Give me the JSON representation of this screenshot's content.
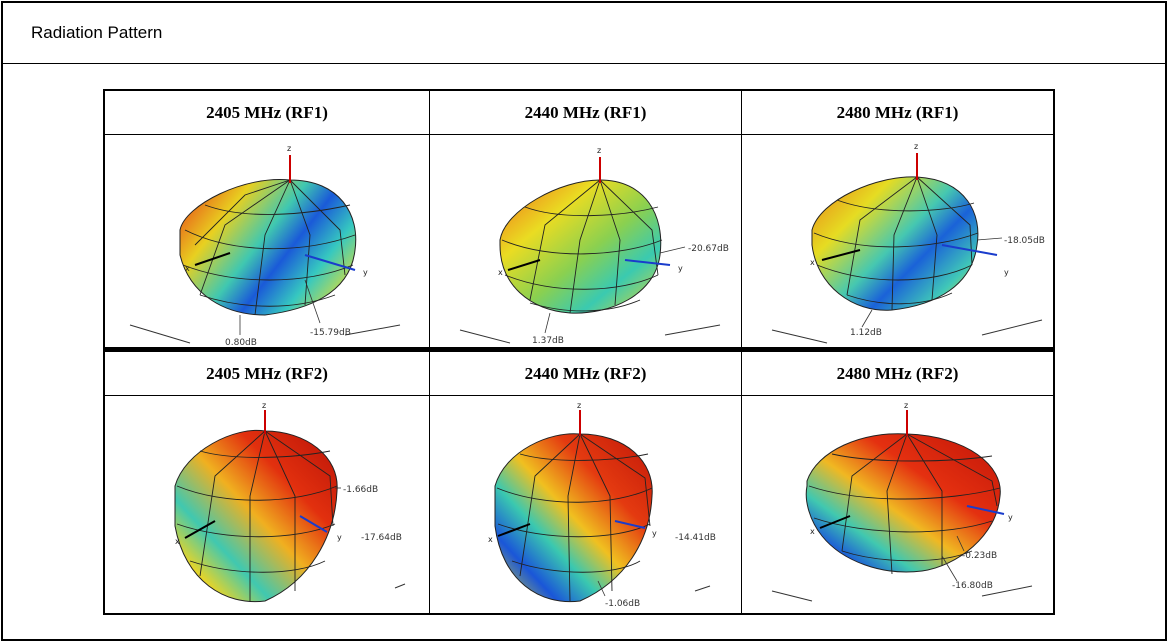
{
  "section": {
    "title": "Radiation Pattern"
  },
  "rows": [
    {
      "cells": [
        {
          "header": "2405 MHz (RF1)",
          "labels": [
            "0.80dB",
            "-15.79dB"
          ]
        },
        {
          "header": "2440 MHz (RF1)",
          "labels": [
            "-20.67dB",
            "1.37dB"
          ]
        },
        {
          "header": "2480 MHz (RF1)",
          "labels": [
            "-18.05dB",
            "1.12dB"
          ]
        }
      ]
    },
    {
      "cells": [
        {
          "header": "2405 MHz (RF2)",
          "labels": [
            "-1.66dB",
            "-17.64dB"
          ]
        },
        {
          "header": "2440 MHz (RF2)",
          "labels": [
            "-14.41dB",
            "-1.06dB"
          ]
        },
        {
          "header": "2480 MHz (RF2)",
          "labels": [
            "-0.23dB",
            "-16.80dB"
          ]
        }
      ]
    }
  ],
  "axes": {
    "x": "x",
    "y": "y",
    "z": "z"
  },
  "colors": {
    "hot": "#d41a0c",
    "warm": "#f28a1a",
    "mid": "#e8e020",
    "cool": "#36c8a8",
    "cold": "#1a56d8",
    "z_axis": "#cc0000",
    "y_axis": "#1a3ccc"
  }
}
